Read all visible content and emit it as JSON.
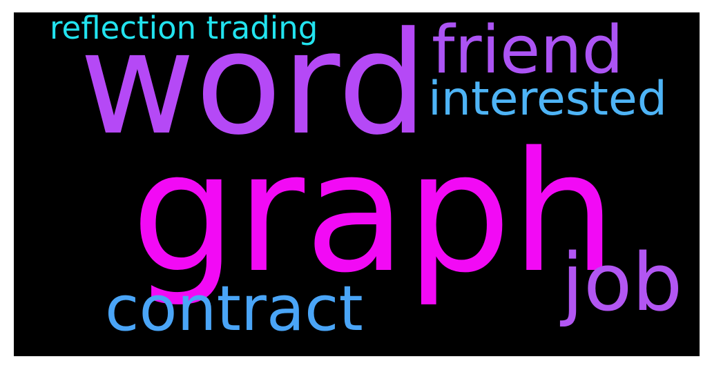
{
  "words": [
    {
      "text": "graph",
      "color": "#f20af5"
    },
    {
      "text": "word",
      "color": "#b549f6"
    },
    {
      "text": "friend",
      "color": "#ac54f4"
    },
    {
      "text": "interested",
      "color": "#4eb4f6"
    },
    {
      "text": "reflection trading",
      "color": "#22e3ef"
    },
    {
      "text": "contract",
      "color": "#4aa5f7"
    },
    {
      "text": "job",
      "color": "#b256f2"
    }
  ],
  "background_color": "#000000"
}
